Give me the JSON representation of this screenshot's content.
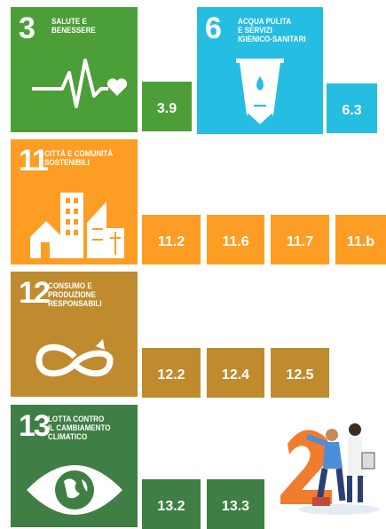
{
  "goals": [
    {
      "number": "3",
      "title_lines": [
        "SALUTE E",
        "BENESSERE"
      ],
      "targets": [
        "3.9"
      ]
    },
    {
      "number": "6",
      "title_lines": [
        "ACQUA PULITA",
        "E SERVIZI",
        "IGIENICO-SANITARI"
      ],
      "targets": [
        "6.3"
      ]
    },
    {
      "number": "11",
      "title_lines": [
        "CITTÀ E COMUNITÀ",
        "SOSTENIBILI"
      ],
      "targets": [
        "11.2",
        "11.6",
        "11.7",
        "11.b"
      ]
    },
    {
      "number": "12",
      "title_lines": [
        "CONSUMO E",
        "PRODUZIONE",
        "RESPONSABILI"
      ],
      "targets": [
        "12.2",
        "12.4",
        "12.5"
      ]
    },
    {
      "number": "13",
      "title_lines": [
        "LOTTA CONTRO",
        "IL CAMBIAMENTO",
        "CLIMATICO"
      ],
      "targets": [
        "13.2",
        "13.3"
      ]
    }
  ]
}
